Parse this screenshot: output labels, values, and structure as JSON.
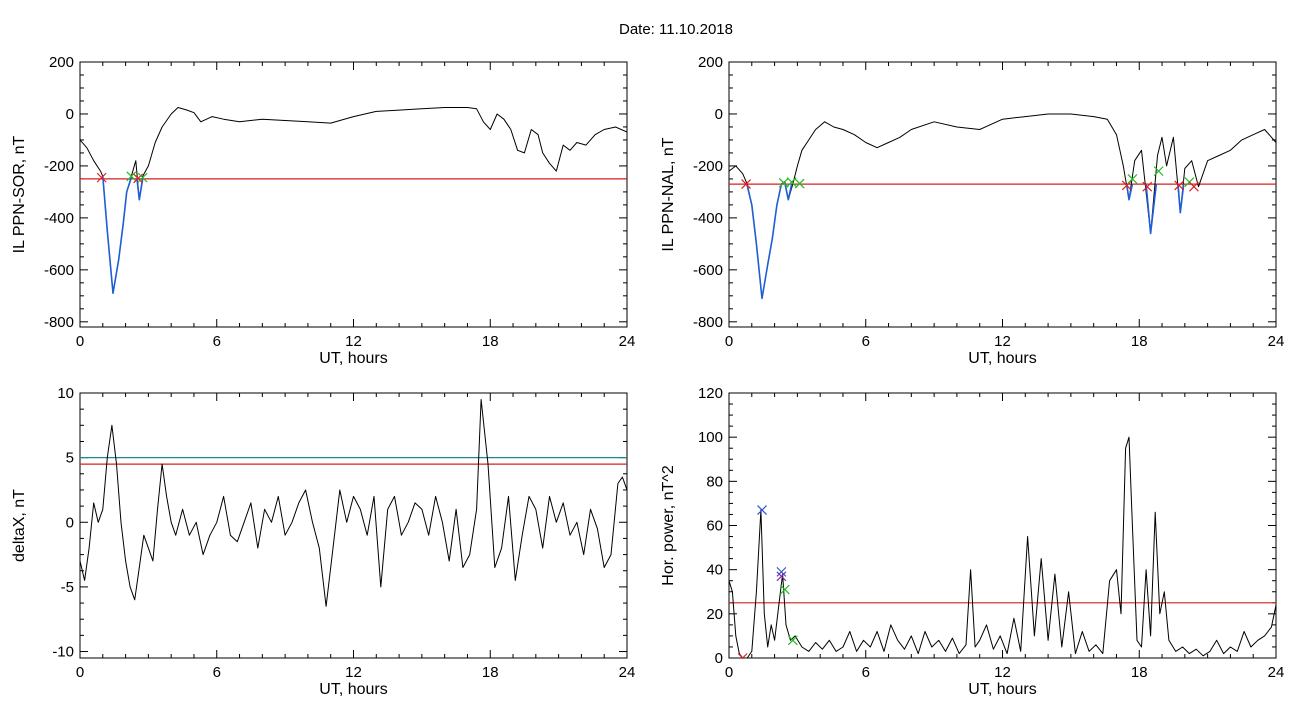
{
  "title": "Date:  11.10.2018",
  "colors": {
    "trace": "#000000",
    "selected": "#1f5fd6",
    "threshold_red": "#d42020",
    "threshold_teal": "#1c8a8a",
    "marker_red": "#e02020",
    "marker_green": "#22bb22",
    "marker_blue": "#2a55d0",
    "marker_purple": "#8a2aa8"
  },
  "chart_data": [
    {
      "type": "line",
      "xlabel": "UT, hours",
      "ylabel": "IL PPN-SOR, nT",
      "xlim": [
        0,
        24
      ],
      "ylim": [
        -820,
        200
      ],
      "xticks": [
        0,
        6,
        12,
        18,
        24
      ],
      "yticks": [
        200,
        0,
        -200,
        -400,
        -600,
        -800
      ],
      "grid": false,
      "series": [
        {
          "color": "trace",
          "x": [
            0,
            0.3,
            0.6,
            0.9,
            1.0,
            1.2,
            1.45,
            1.7,
            1.9,
            2.05,
            2.25,
            2.45,
            2.6,
            2.75,
            3.0,
            3.3,
            3.6,
            4.0,
            4.3,
            4.7,
            5.0,
            5.3,
            5.8,
            6.3,
            7.0,
            8.0,
            9.0,
            10.0,
            11.0,
            12.0,
            13.0,
            14.0,
            15.0,
            16.0,
            17.0,
            17.4,
            17.7,
            18.0,
            18.3,
            18.6,
            18.9,
            19.2,
            19.5,
            19.8,
            20.1,
            20.3,
            20.6,
            20.9,
            21.2,
            21.5,
            21.8,
            22.2,
            22.6,
            23.0,
            23.5,
            24
          ],
          "y": [
            -100,
            -130,
            -180,
            -220,
            -240,
            -450,
            -690,
            -560,
            -420,
            -300,
            -240,
            -180,
            -330,
            -240,
            -200,
            -110,
            -50,
            0,
            25,
            15,
            5,
            -30,
            -10,
            -20,
            -30,
            -20,
            -25,
            -30,
            -35,
            -10,
            10,
            15,
            20,
            25,
            25,
            20,
            -30,
            -60,
            0,
            -20,
            -60,
            -140,
            -150,
            -60,
            -80,
            -150,
            -190,
            -220,
            -120,
            -140,
            -110,
            -120,
            -80,
            -60,
            -50,
            -70
          ]
        },
        {
          "color": "selected",
          "x": [
            0.95,
            1.0,
            1.2,
            1.45,
            1.7,
            1.9,
            2.05,
            2.25
          ],
          "y": [
            -245,
            -240,
            -450,
            -690,
            -560,
            -420,
            -300,
            -245
          ]
        },
        {
          "color": "selected",
          "x": [
            2.5,
            2.6,
            2.75
          ],
          "y": [
            -250,
            -330,
            -250
          ]
        }
      ],
      "hlines": [
        {
          "value": -250,
          "color": "threshold_red"
        }
      ],
      "markers": [
        {
          "x": 0.95,
          "y": -245,
          "color": "marker_red"
        },
        {
          "x": 2.25,
          "y": -240,
          "color": "marker_green"
        },
        {
          "x": 2.55,
          "y": -248,
          "color": "marker_red"
        },
        {
          "x": 2.75,
          "y": -245,
          "color": "marker_green"
        }
      ]
    },
    {
      "type": "line",
      "xlabel": "UT, hours",
      "ylabel": "IL PPN-NAL, nT",
      "xlim": [
        0,
        24
      ],
      "ylim": [
        -820,
        200
      ],
      "xticks": [
        0,
        6,
        12,
        18,
        24
      ],
      "yticks": [
        200,
        0,
        -200,
        -400,
        -600,
        -800
      ],
      "grid": false,
      "series": [
        {
          "color": "trace",
          "x": [
            0,
            0.3,
            0.6,
            0.8,
            1.0,
            1.2,
            1.45,
            1.7,
            1.9,
            2.1,
            2.3,
            2.45,
            2.6,
            2.8,
            3.0,
            3.2,
            3.5,
            3.8,
            4.2,
            4.6,
            5.0,
            5.5,
            6.0,
            6.5,
            7.0,
            7.5,
            8.0,
            9.0,
            10.0,
            11.0,
            12.0,
            13.0,
            14.0,
            15.0,
            16.0,
            16.6,
            17.0,
            17.3,
            17.55,
            17.8,
            18.1,
            18.5,
            18.8,
            19.0,
            19.2,
            19.5,
            19.8,
            20.0,
            20.3,
            20.6,
            21.0,
            21.5,
            22.0,
            22.5,
            23.0,
            23.5,
            24
          ],
          "y": [
            -220,
            -200,
            -230,
            -270,
            -350,
            -500,
            -710,
            -580,
            -480,
            -350,
            -270,
            -260,
            -330,
            -270,
            -200,
            -140,
            -100,
            -60,
            -30,
            -50,
            -60,
            -80,
            -110,
            -130,
            -110,
            -90,
            -60,
            -30,
            -50,
            -60,
            -20,
            -10,
            0,
            0,
            -10,
            -20,
            -80,
            -200,
            -330,
            -180,
            -140,
            -460,
            -160,
            -90,
            -200,
            -90,
            -380,
            -210,
            -180,
            -280,
            -180,
            -160,
            -140,
            -100,
            -80,
            -60,
            -110
          ]
        },
        {
          "color": "selected",
          "x": [
            0.75,
            0.8,
            1.0,
            1.2,
            1.45,
            1.7,
            1.9,
            2.1,
            2.3
          ],
          "y": [
            -270,
            -275,
            -350,
            -500,
            -710,
            -580,
            -480,
            -350,
            -270
          ]
        },
        {
          "color": "selected",
          "x": [
            2.45,
            2.6,
            2.75
          ],
          "y": [
            -265,
            -330,
            -270
          ]
        },
        {
          "color": "selected",
          "x": [
            17.45,
            17.55,
            17.7
          ],
          "y": [
            -270,
            -330,
            -270
          ]
        },
        {
          "color": "selected",
          "x": [
            18.3,
            18.5,
            18.75
          ],
          "y": [
            -270,
            -460,
            -270
          ]
        },
        {
          "color": "selected",
          "x": [
            19.7,
            19.8,
            19.95
          ],
          "y": [
            -270,
            -380,
            -270
          ]
        }
      ],
      "hlines": [
        {
          "value": -270,
          "color": "threshold_red"
        }
      ],
      "markers": [
        {
          "x": 0.75,
          "y": -270,
          "color": "marker_red"
        },
        {
          "x": 2.4,
          "y": -265,
          "color": "marker_green"
        },
        {
          "x": 2.75,
          "y": -262,
          "color": "marker_green"
        },
        {
          "x": 3.1,
          "y": -268,
          "color": "marker_green"
        },
        {
          "x": 17.45,
          "y": -275,
          "color": "marker_red"
        },
        {
          "x": 17.7,
          "y": -250,
          "color": "marker_green"
        },
        {
          "x": 18.35,
          "y": -280,
          "color": "marker_red"
        },
        {
          "x": 18.85,
          "y": -220,
          "color": "marker_green"
        },
        {
          "x": 19.75,
          "y": -275,
          "color": "marker_red"
        },
        {
          "x": 20.2,
          "y": -262,
          "color": "marker_green"
        },
        {
          "x": 20.4,
          "y": -280,
          "color": "marker_red"
        }
      ]
    },
    {
      "type": "line",
      "xlabel": "UT, hours",
      "ylabel": "deltaX, nT",
      "xlim": [
        0,
        24
      ],
      "ylim": [
        -10.5,
        10
      ],
      "xticks": [
        0,
        6,
        12,
        18,
        24
      ],
      "yticks": [
        10,
        5,
        0,
        -5,
        -10
      ],
      "grid": false,
      "series": [
        {
          "color": "trace",
          "x": [
            0,
            0.2,
            0.4,
            0.6,
            0.8,
            1.0,
            1.2,
            1.4,
            1.6,
            1.8,
            2.0,
            2.2,
            2.4,
            2.6,
            2.8,
            3.0,
            3.2,
            3.4,
            3.6,
            3.8,
            4.0,
            4.2,
            4.5,
            4.8,
            5.1,
            5.4,
            5.7,
            6.0,
            6.3,
            6.6,
            6.9,
            7.2,
            7.5,
            7.8,
            8.1,
            8.4,
            8.7,
            9.0,
            9.3,
            9.6,
            9.9,
            10.2,
            10.5,
            10.8,
            11.1,
            11.4,
            11.7,
            12.0,
            12.3,
            12.6,
            12.9,
            13.2,
            13.5,
            13.8,
            14.1,
            14.4,
            14.7,
            15.0,
            15.3,
            15.6,
            15.9,
            16.2,
            16.5,
            16.8,
            17.1,
            17.4,
            17.6,
            17.9,
            18.2,
            18.5,
            18.8,
            19.1,
            19.4,
            19.7,
            20.0,
            20.3,
            20.6,
            20.9,
            21.2,
            21.5,
            21.8,
            22.1,
            22.4,
            22.7,
            23.0,
            23.3,
            23.6,
            23.8,
            24
          ],
          "y": [
            -3,
            -4.5,
            -2,
            1.5,
            0,
            1,
            5,
            7.5,
            4.5,
            0,
            -3,
            -5,
            -6,
            -3.5,
            -1,
            -2,
            -3,
            1,
            4.5,
            2,
            0,
            -1,
            1,
            -1,
            0,
            -2.5,
            -1,
            0,
            2,
            -1,
            -1.5,
            0,
            1.5,
            -2,
            1,
            0,
            2,
            -1,
            0,
            1.5,
            2.5,
            0,
            -2,
            -6.5,
            -2,
            2.5,
            0,
            2,
            1,
            -1,
            2,
            -5,
            1,
            2,
            -1,
            0,
            1.5,
            1,
            -1,
            2,
            0,
            -3,
            1,
            -3.5,
            -2.5,
            1,
            9.5,
            4.5,
            -3.5,
            -2,
            2,
            -4.5,
            -1,
            2,
            1,
            -2,
            2,
            0,
            1.5,
            -1,
            0,
            -2.5,
            1,
            -0.5,
            -3.5,
            -2.5,
            3,
            3.5,
            2.5
          ]
        }
      ],
      "hlines": [
        {
          "value": 5,
          "color": "threshold_teal"
        },
        {
          "value": 4.5,
          "color": "threshold_red"
        }
      ],
      "markers": []
    },
    {
      "type": "line",
      "xlabel": "UT, hours",
      "ylabel": "Hor. power, nT^2",
      "xlim": [
        0,
        24
      ],
      "ylim": [
        0,
        120
      ],
      "xticks": [
        0,
        6,
        12,
        18,
        24
      ],
      "yticks": [
        0,
        20,
        40,
        60,
        80,
        100,
        120
      ],
      "grid": false,
      "series": [
        {
          "color": "trace",
          "x": [
            0,
            0.15,
            0.3,
            0.45,
            0.6,
            0.8,
            1.0,
            1.2,
            1.4,
            1.55,
            1.7,
            1.85,
            2.0,
            2.2,
            2.35,
            2.5,
            2.7,
            2.9,
            3.2,
            3.5,
            3.8,
            4.1,
            4.4,
            4.7,
            5.0,
            5.3,
            5.6,
            5.9,
            6.2,
            6.5,
            6.8,
            7.1,
            7.4,
            7.7,
            8.0,
            8.3,
            8.6,
            8.9,
            9.2,
            9.5,
            9.8,
            10.1,
            10.4,
            10.6,
            10.8,
            11.0,
            11.3,
            11.6,
            11.9,
            12.2,
            12.5,
            12.8,
            13.1,
            13.4,
            13.7,
            14.0,
            14.3,
            14.6,
            14.9,
            15.2,
            15.5,
            15.8,
            16.1,
            16.4,
            16.7,
            17.0,
            17.2,
            17.4,
            17.55,
            17.7,
            17.9,
            18.1,
            18.3,
            18.5,
            18.7,
            18.9,
            19.1,
            19.3,
            19.6,
            19.9,
            20.2,
            20.5,
            20.8,
            21.1,
            21.4,
            21.7,
            22.0,
            22.3,
            22.6,
            22.9,
            23.2,
            23.5,
            23.8,
            24
          ],
          "y": [
            35,
            30,
            10,
            2,
            0,
            0,
            3,
            30,
            67,
            20,
            5,
            15,
            8,
            25,
            38,
            15,
            8,
            10,
            5,
            3,
            7,
            4,
            8,
            3,
            5,
            12,
            3,
            8,
            5,
            12,
            3,
            15,
            8,
            4,
            10,
            2,
            12,
            5,
            8,
            3,
            9,
            2,
            6,
            40,
            5,
            8,
            15,
            4,
            10,
            2,
            18,
            3,
            55,
            10,
            45,
            8,
            38,
            5,
            30,
            2,
            12,
            3,
            6,
            2,
            35,
            40,
            20,
            95,
            100,
            60,
            8,
            5,
            40,
            10,
            66,
            20,
            30,
            8,
            3,
            5,
            2,
            4,
            1,
            3,
            8,
            2,
            5,
            3,
            12,
            5,
            8,
            10,
            14,
            24
          ]
        }
      ],
      "hlines": [
        {
          "value": 25,
          "color": "threshold_red"
        }
      ],
      "markers": [
        {
          "x": 1.45,
          "y": 67,
          "color": "marker_blue"
        },
        {
          "x": 2.3,
          "y": 39,
          "color": "marker_blue"
        },
        {
          "x": 2.3,
          "y": 37,
          "color": "marker_purple"
        },
        {
          "x": 2.45,
          "y": 31,
          "color": "marker_green"
        },
        {
          "x": 0.6,
          "y": 0,
          "color": "marker_red"
        },
        {
          "x": 2.8,
          "y": 8,
          "color": "marker_green"
        }
      ]
    }
  ]
}
